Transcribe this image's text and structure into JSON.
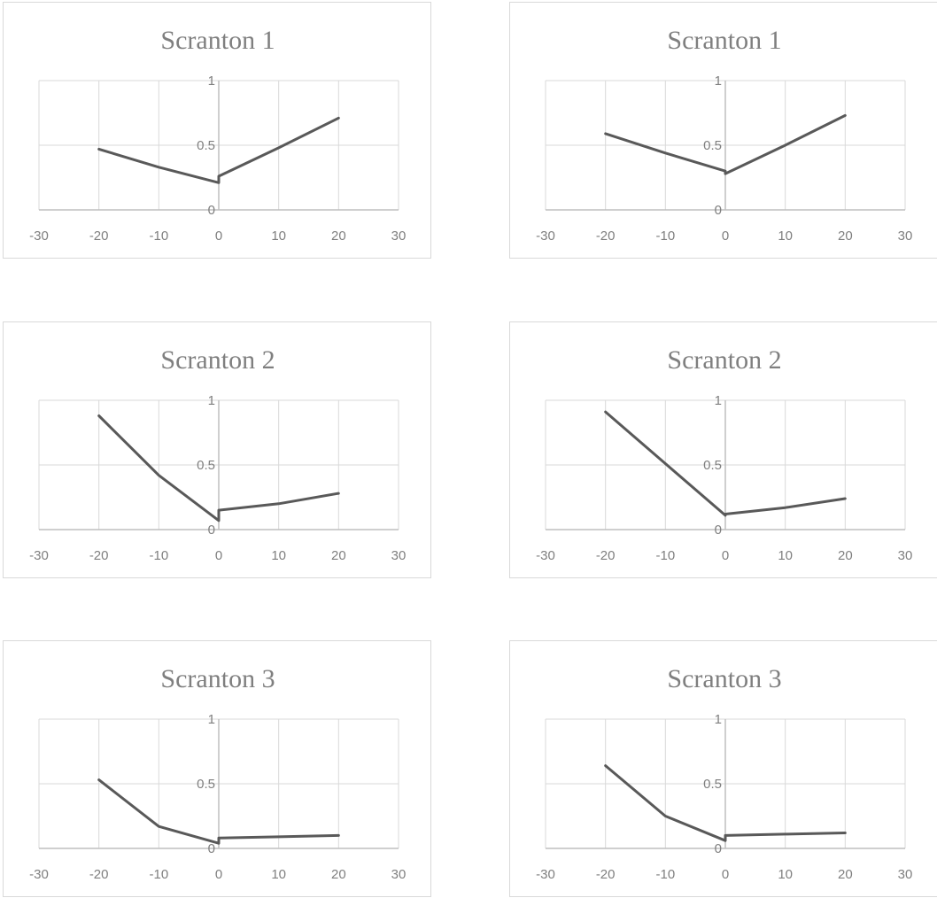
{
  "chart_data": [
    {
      "type": "line",
      "title": "Scranton 1",
      "xlim": [
        -30,
        30
      ],
      "ylim": [
        0,
        1
      ],
      "x_ticks": [
        -30,
        -20,
        -10,
        0,
        10,
        20,
        30
      ],
      "y_ticks": [
        0,
        0.5,
        1
      ],
      "x_tick_labels": [
        "-30",
        "-20",
        "-10",
        "0",
        "10",
        "20",
        "30"
      ],
      "y_tick_labels": [
        "0",
        "0.5",
        "1"
      ],
      "grid": true,
      "legend": "none",
      "line_color": "#595959",
      "series": [
        {
          "points": [
            [
              -20,
              0.47
            ],
            [
              -10,
              0.33
            ],
            [
              0,
              0.21
            ],
            [
              0,
              0.26
            ],
            [
              10,
              0.48
            ],
            [
              20,
              0.71
            ]
          ]
        }
      ]
    },
    {
      "type": "line",
      "title": "Scranton 1",
      "xlim": [
        -30,
        30
      ],
      "ylim": [
        0,
        1
      ],
      "x_ticks": [
        -30,
        -20,
        -10,
        0,
        10,
        20,
        30
      ],
      "y_ticks": [
        0,
        0.5,
        1
      ],
      "x_tick_labels": [
        "-30",
        "-20",
        "-10",
        "0",
        "10",
        "20",
        "30"
      ],
      "y_tick_labels": [
        "0",
        "0.5",
        "1"
      ],
      "grid": true,
      "legend": "none",
      "line_color": "#595959",
      "series": [
        {
          "points": [
            [
              -20,
              0.59
            ],
            [
              -10,
              0.44
            ],
            [
              0,
              0.3
            ],
            [
              0,
              0.28
            ],
            [
              10,
              0.5
            ],
            [
              20,
              0.73
            ]
          ]
        }
      ]
    },
    {
      "type": "line",
      "title": "Scranton 2",
      "xlim": [
        -30,
        30
      ],
      "ylim": [
        0,
        1
      ],
      "x_ticks": [
        -30,
        -20,
        -10,
        0,
        10,
        20,
        30
      ],
      "y_ticks": [
        0,
        0.5,
        1
      ],
      "x_tick_labels": [
        "-30",
        "-20",
        "-10",
        "0",
        "10",
        "20",
        "30"
      ],
      "y_tick_labels": [
        "0",
        "0.5",
        "1"
      ],
      "grid": true,
      "legend": "none",
      "line_color": "#595959",
      "series": [
        {
          "points": [
            [
              -20,
              0.88
            ],
            [
              -10,
              0.42
            ],
            [
              0,
              0.07
            ],
            [
              0,
              0.15
            ],
            [
              10,
              0.2
            ],
            [
              20,
              0.28
            ]
          ]
        }
      ]
    },
    {
      "type": "line",
      "title": "Scranton 2",
      "xlim": [
        -30,
        30
      ],
      "ylim": [
        0,
        1
      ],
      "x_ticks": [
        -30,
        -20,
        -10,
        0,
        10,
        20,
        30
      ],
      "y_ticks": [
        0,
        0.5,
        1
      ],
      "x_tick_labels": [
        "-30",
        "-20",
        "-10",
        "0",
        "10",
        "20",
        "30"
      ],
      "y_tick_labels": [
        "0",
        "0.5",
        "1"
      ],
      "grid": true,
      "legend": "none",
      "line_color": "#595959",
      "series": [
        {
          "points": [
            [
              -20,
              0.91
            ],
            [
              -10,
              0.51
            ],
            [
              0,
              0.11
            ],
            [
              0,
              0.12
            ],
            [
              10,
              0.17
            ],
            [
              20,
              0.24
            ]
          ]
        }
      ]
    },
    {
      "type": "line",
      "title": "Scranton 3",
      "xlim": [
        -30,
        30
      ],
      "ylim": [
        0,
        1
      ],
      "x_ticks": [
        -30,
        -20,
        -10,
        0,
        10,
        20,
        30
      ],
      "y_ticks": [
        0,
        0.5,
        1
      ],
      "x_tick_labels": [
        "-30",
        "-20",
        "-10",
        "0",
        "10",
        "20",
        "30"
      ],
      "y_tick_labels": [
        "0",
        "0.5",
        "1"
      ],
      "grid": true,
      "legend": "none",
      "line_color": "#595959",
      "series": [
        {
          "points": [
            [
              -20,
              0.53
            ],
            [
              -10,
              0.17
            ],
            [
              0,
              0.04
            ],
            [
              0,
              0.08
            ],
            [
              10,
              0.09
            ],
            [
              20,
              0.1
            ]
          ]
        }
      ]
    },
    {
      "type": "line",
      "title": "Scranton 3",
      "xlim": [
        -30,
        30
      ],
      "ylim": [
        0,
        1
      ],
      "x_ticks": [
        -30,
        -20,
        -10,
        0,
        10,
        20,
        30
      ],
      "y_ticks": [
        0,
        0.5,
        1
      ],
      "x_tick_labels": [
        "-30",
        "-20",
        "-10",
        "0",
        "10",
        "20",
        "30"
      ],
      "y_tick_labels": [
        "0",
        "0.5",
        "1"
      ],
      "grid": true,
      "legend": "none",
      "line_color": "#595959",
      "series": [
        {
          "points": [
            [
              -20,
              0.64
            ],
            [
              -10,
              0.25
            ],
            [
              0,
              0.06
            ],
            [
              0,
              0.1
            ],
            [
              10,
              0.11
            ],
            [
              20,
              0.12
            ]
          ]
        }
      ]
    }
  ]
}
